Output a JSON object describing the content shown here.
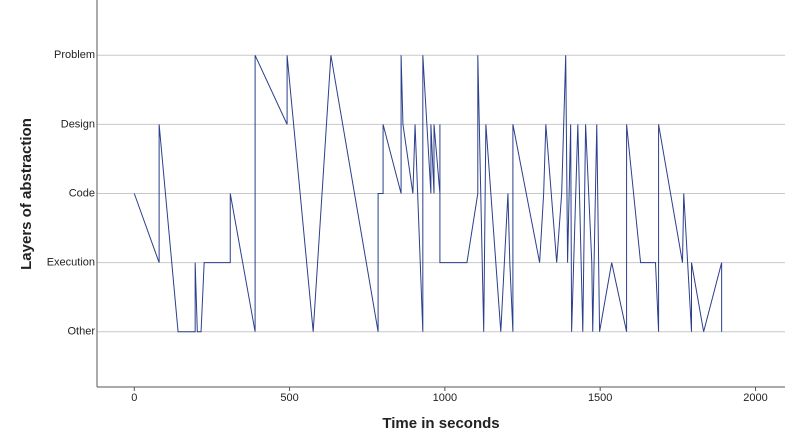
{
  "chart_data": {
    "type": "line",
    "x_label": "Time in seconds",
    "y_label": "Layers of abstraction",
    "color": "#2b3f8c",
    "grid": true,
    "x": [
      0,
      80,
      80,
      141,
      196,
      196,
      203,
      215,
      225,
      309,
      309,
      389,
      389,
      492,
      492,
      576,
      633,
      785,
      785,
      801,
      801,
      859,
      859,
      865,
      897,
      904,
      929,
      929,
      955,
      955,
      965,
      965,
      984,
      984,
      984,
      1071,
      1106,
      1106,
      1125,
      1132,
      1180,
      1203,
      1209,
      1219,
      1219,
      1305,
      1318,
      1325,
      1360,
      1376,
      1389,
      1395,
      1405,
      1408,
      1428,
      1444,
      1453,
      1473,
      1476,
      1489,
      1498,
      1537,
      1585,
      1585,
      1630,
      1678,
      1688,
      1688,
      1765,
      1769,
      1794,
      1794,
      1833,
      1891,
      1891
    ],
    "values": [
      3,
      2,
      4,
      1,
      1,
      2,
      1,
      1,
      2,
      2,
      3,
      1,
      5,
      4,
      5,
      1,
      5,
      1,
      3,
      3,
      4,
      3,
      5,
      4,
      3,
      4,
      1,
      5,
      3,
      4,
      3,
      4,
      3,
      4,
      2,
      2,
      3,
      5,
      1,
      4,
      1,
      3,
      2,
      1,
      4,
      2,
      3,
      4,
      2,
      3,
      5,
      2,
      4,
      1,
      4,
      1,
      4,
      2,
      1,
      4,
      1,
      2,
      1,
      4,
      2,
      2,
      1,
      4,
      2,
      3,
      1,
      2,
      1,
      2,
      1
    ],
    "xlim": [
      -120,
      2095
    ],
    "xticks": [
      0,
      500,
      1000,
      1500,
      2000
    ],
    "ylim": [
      0.2,
      5.8
    ],
    "yticks": [
      {
        "value": 1,
        "label": "Other"
      },
      {
        "value": 2,
        "label": "Execution"
      },
      {
        "value": 3,
        "label": "Code"
      },
      {
        "value": 4,
        "label": "Design"
      },
      {
        "value": 5,
        "label": "Problem"
      }
    ]
  }
}
